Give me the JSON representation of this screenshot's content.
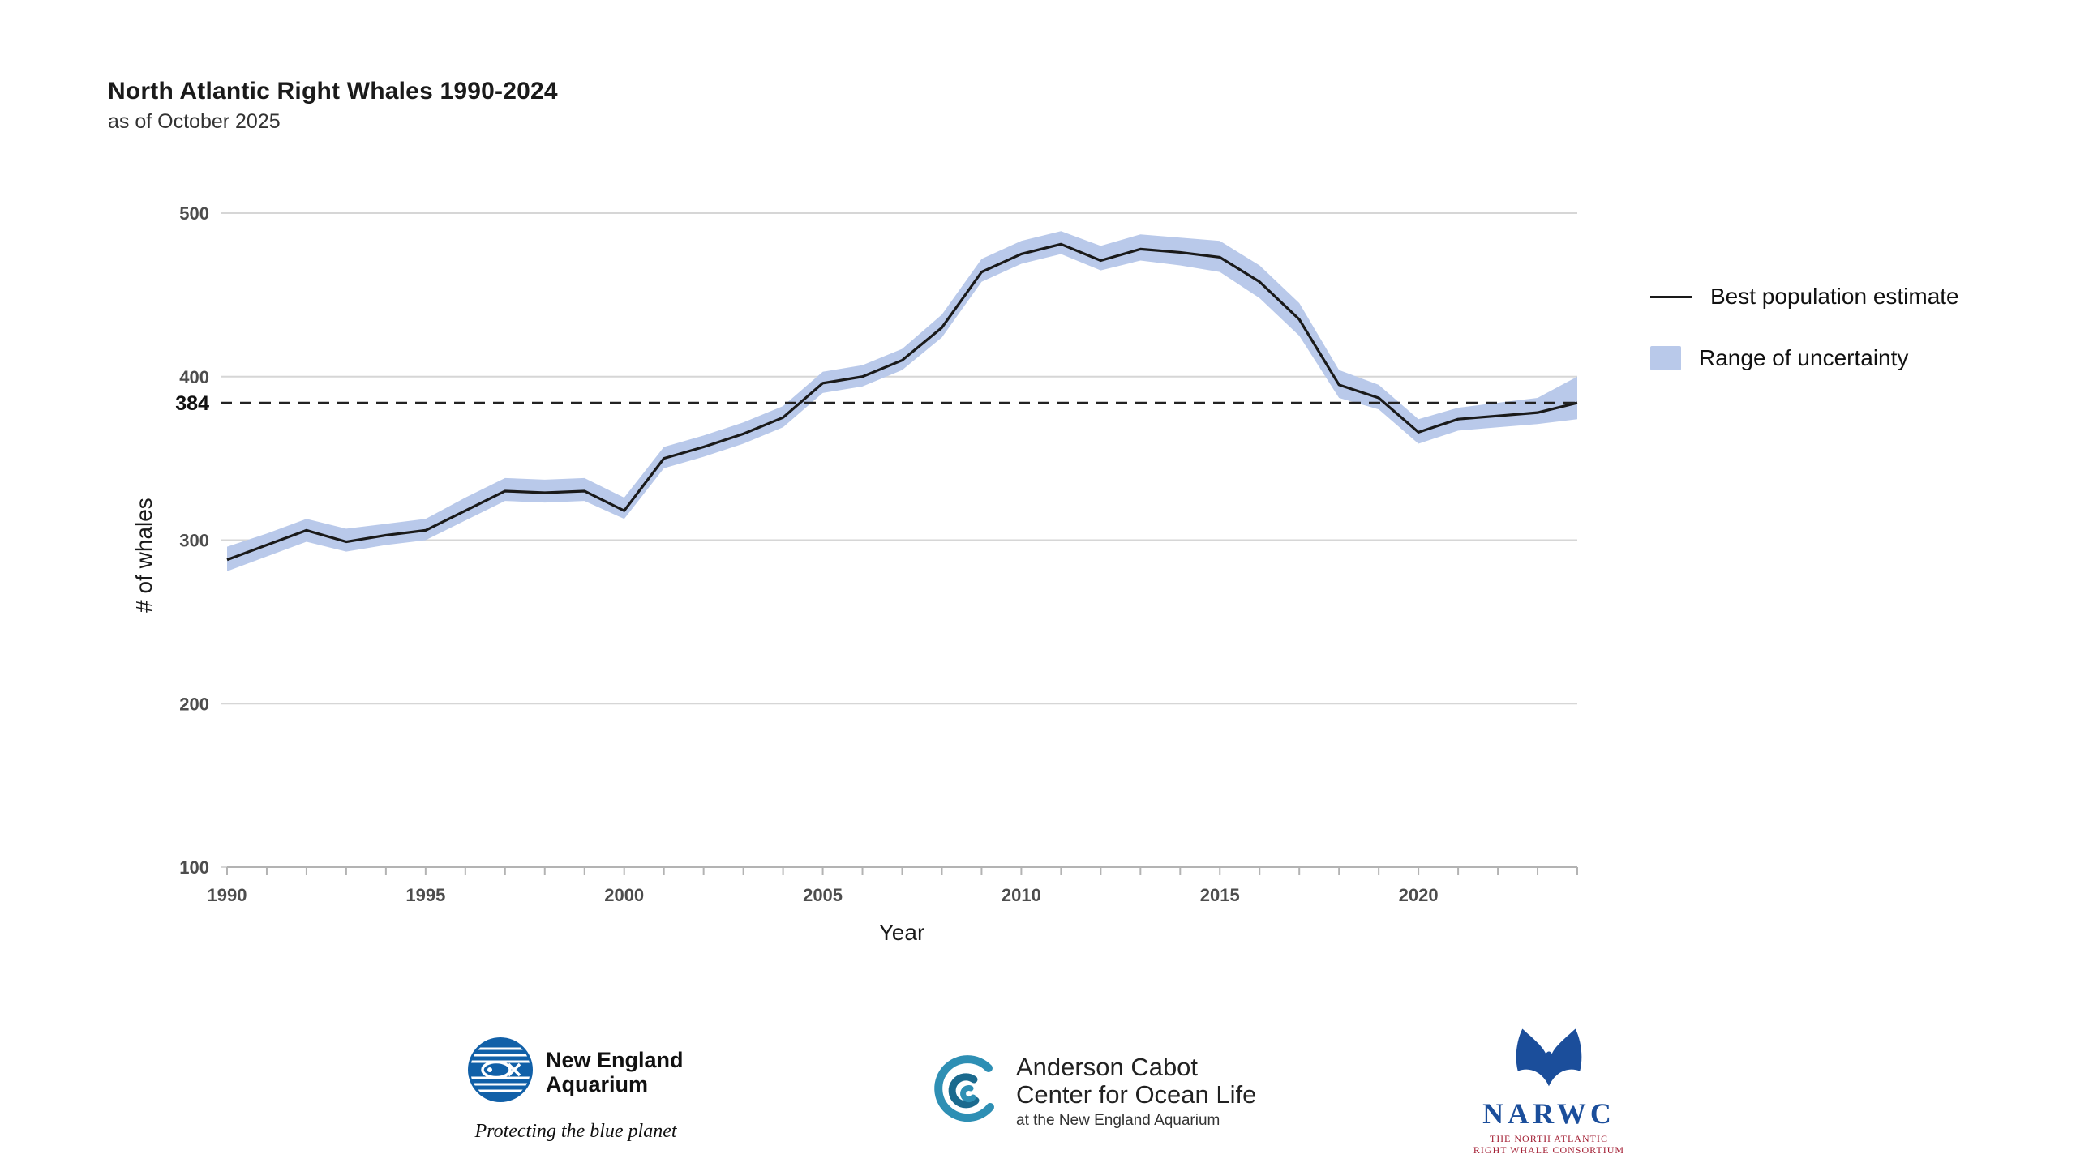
{
  "title": "North Atlantic Right Whales 1990-2024",
  "subtitle": "as of October 2025",
  "chart_data": {
    "type": "line",
    "title": "North Atlantic Right Whales 1990-2024",
    "xlabel": "Year",
    "ylabel": "# of whales",
    "xlim": [
      1990,
      2024
    ],
    "ylim": [
      100,
      500
    ],
    "yticks": [
      100,
      200,
      300,
      400,
      500
    ],
    "xticks": [
      1990,
      1995,
      2000,
      2005,
      2010,
      2015,
      2020
    ],
    "grid": "horizontal",
    "legend_position": "right",
    "x": [
      1990,
      1991,
      1992,
      1993,
      1994,
      1995,
      1996,
      1997,
      1998,
      1999,
      2000,
      2001,
      2002,
      2003,
      2004,
      2005,
      2006,
      2007,
      2008,
      2009,
      2010,
      2011,
      2012,
      2013,
      2014,
      2015,
      2016,
      2017,
      2018,
      2019,
      2020,
      2021,
      2022,
      2023,
      2024
    ],
    "series": [
      {
        "name": "Best population estimate",
        "values": [
          288,
          297,
          306,
          299,
          303,
          306,
          318,
          330,
          329,
          330,
          318,
          350,
          357,
          365,
          375,
          396,
          400,
          410,
          430,
          464,
          475,
          481,
          471,
          478,
          476,
          473,
          458,
          435,
          395,
          387,
          366,
          374,
          376,
          378,
          384
        ]
      },
      {
        "name": "Range of uncertainty (lower)",
        "values": [
          281,
          290,
          299,
          293,
          297,
          300,
          312,
          324,
          323,
          324,
          313,
          344,
          351,
          359,
          369,
          390,
          394,
          404,
          424,
          458,
          469,
          475,
          465,
          471,
          468,
          464,
          448,
          425,
          387,
          380,
          359,
          367,
          369,
          371,
          374
        ]
      },
      {
        "name": "Range of uncertainty (upper)",
        "values": [
          296,
          304,
          313,
          307,
          310,
          313,
          326,
          338,
          337,
          338,
          326,
          357,
          364,
          372,
          382,
          403,
          407,
          417,
          438,
          472,
          483,
          489,
          480,
          487,
          485,
          483,
          468,
          445,
          404,
          395,
          374,
          381,
          384,
          387,
          400
        ]
      }
    ],
    "reference_line": {
      "value": 384,
      "label": "384",
      "style": "dashed"
    },
    "colors": {
      "line": "#1a1a1a",
      "band": "#b9c9ea",
      "grid": "#d6d6d6",
      "axis": "#b3b3b3",
      "tick_text": "#4d4d4d",
      "reference": "#222222"
    }
  },
  "legend": {
    "items": [
      {
        "label": "Best population estimate",
        "swatch": "line"
      },
      {
        "label": "Range of uncertainty",
        "swatch": "band"
      }
    ]
  },
  "logos": {
    "neaq": {
      "icon": "new-england-aquarium-fish-icon",
      "name_line1": "New England",
      "name_line2": "Aquarium",
      "tagline": "Protecting the blue planet"
    },
    "acc": {
      "icon": "wave-icon",
      "line1": "Anderson Cabot",
      "line2": "Center for Ocean Life",
      "line3": "at the New England Aquarium"
    },
    "narwc": {
      "icon": "whale-tail-icon",
      "acronym": "NARWC",
      "line1": "THE NORTH ATLANTIC",
      "line2": "RIGHT WHALE CONSORTIUM"
    }
  }
}
